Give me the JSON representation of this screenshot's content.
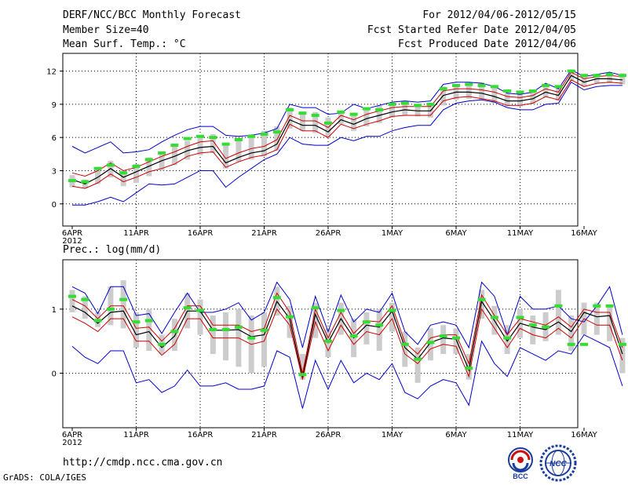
{
  "header": {
    "title": "DERF/NCC/BCC Monthly Forecast",
    "member_size": "Member Size=40",
    "variable": "Mean Surf. Temp.: °C",
    "forecast_period": "For 2012/04/06-2012/05/15",
    "started_refer_date": "Fcst Started Refer Date 2012/04/05",
    "produced_date": "Fcst Produced Date 2012/04/06"
  },
  "panel2_title": "Prec.: log(mm/d)",
  "footer": {
    "url": "http://cmdp.ncc.cma.gov.cn",
    "credit": "GrADS: COLA/IGES"
  },
  "logos": {
    "bcc_text": "BCC",
    "ncc_text": "NCC"
  },
  "colors": {
    "max_min": "#0000cc",
    "std_band": "#cc0000",
    "ensemble_mean": "#000000",
    "climatology": "#33dd33",
    "member_spread": "#cccccc",
    "grid": "#000000"
  },
  "chart_data": [
    {
      "type": "line",
      "title": "Mean Surf. Temp.: °C",
      "x_tick_labels": [
        "6APR",
        "11APR",
        "16APR",
        "21APR",
        "26APR",
        "1MAY",
        "6MAY",
        "11MAY",
        "16MAY"
      ],
      "x_year_label": "2012",
      "y_ticks": [
        0,
        3,
        6,
        9,
        12
      ],
      "ylim": [
        -2,
        13.6
      ],
      "series": [
        {
          "name": "max",
          "color": "#0000cc",
          "values": [
            5.2,
            4.6,
            5.1,
            5.6,
            4.6,
            4.7,
            4.9,
            5.6,
            6.2,
            6.7,
            7.0,
            7.0,
            6.2,
            6.1,
            6.2,
            6.4,
            6.8,
            9.0,
            8.7,
            8.7,
            8.1,
            8.2,
            9.0,
            8.6,
            8.9,
            9.2,
            9.3,
            9.2,
            9.3,
            10.8,
            11.0,
            11.0,
            10.9,
            10.6,
            10.0,
            9.9,
            10.1,
            10.9,
            10.4,
            12.1,
            11.5,
            11.7,
            11.9,
            11.6
          ]
        },
        {
          "name": "std_upper",
          "color": "#cc0000",
          "values": [
            2.8,
            2.5,
            3.0,
            3.7,
            3.0,
            3.3,
            3.8,
            4.3,
            4.7,
            5.2,
            5.6,
            5.7,
            4.1,
            4.6,
            5.0,
            5.2,
            5.8,
            8.0,
            7.5,
            7.5,
            6.9,
            8.0,
            7.6,
            8.1,
            8.4,
            8.7,
            8.8,
            8.8,
            8.8,
            10.2,
            10.4,
            10.4,
            10.3,
            10.1,
            9.7,
            9.6,
            9.8,
            10.4,
            10.1,
            11.9,
            11.3,
            11.5,
            11.6,
            11.5
          ]
        },
        {
          "name": "ensemble_mean",
          "color": "#000000",
          "values": [
            2.2,
            1.8,
            2.4,
            3.2,
            2.4,
            2.9,
            3.4,
            3.9,
            4.3,
            4.8,
            5.1,
            5.2,
            3.7,
            4.2,
            4.6,
            4.8,
            5.4,
            7.6,
            7.1,
            7.1,
            6.5,
            7.6,
            7.2,
            7.7,
            8.0,
            8.3,
            8.5,
            8.4,
            8.4,
            9.8,
            10.1,
            10.1,
            10.0,
            9.7,
            9.3,
            9.3,
            9.5,
            10.1,
            9.8,
            11.6,
            11.0,
            11.3,
            11.3,
            11.2
          ]
        },
        {
          "name": "std_lower",
          "color": "#cc0000",
          "values": [
            1.6,
            1.4,
            1.9,
            2.7,
            2.0,
            2.4,
            2.9,
            3.2,
            3.6,
            4.3,
            4.6,
            4.7,
            3.3,
            3.8,
            4.2,
            4.4,
            4.9,
            7.2,
            6.6,
            6.6,
            6.0,
            7.2,
            6.8,
            7.2,
            7.5,
            7.9,
            8.0,
            8.0,
            8.0,
            9.3,
            9.6,
            9.7,
            9.5,
            9.3,
            8.9,
            8.9,
            9.1,
            9.7,
            9.4,
            11.2,
            10.6,
            10.9,
            11.0,
            10.9
          ]
        },
        {
          "name": "min",
          "color": "#0000cc",
          "values": [
            -0.1,
            -0.1,
            0.2,
            0.6,
            0.2,
            1.0,
            1.8,
            1.7,
            1.8,
            2.4,
            3.0,
            3.0,
            1.5,
            2.4,
            3.2,
            4.0,
            4.5,
            6.0,
            5.4,
            5.3,
            5.3,
            6.0,
            5.7,
            6.1,
            6.1,
            6.6,
            6.9,
            7.1,
            7.1,
            8.5,
            9.1,
            9.3,
            9.4,
            9.2,
            8.7,
            8.5,
            8.5,
            9.0,
            9.1,
            11.0,
            10.3,
            10.6,
            10.7,
            10.7
          ]
        }
      ],
      "climatology_marks": [
        2.1,
        2.0,
        3.2,
        3.5,
        2.8,
        3.4,
        4.0,
        4.6,
        5.3,
        5.9,
        6.1,
        6.0,
        5.4,
        5.8,
        6.1,
        6.3,
        6.5,
        8.5,
        8.2,
        8.0,
        7.3,
        8.3,
        8.1,
        8.6,
        8.5,
        9.0,
        9.1,
        8.9,
        9.0,
        10.4,
        10.7,
        10.8,
        10.7,
        10.6,
        10.2,
        10.1,
        10.2,
        10.7,
        10.6,
        12.0,
        11.6,
        11.6,
        11.7,
        11.6
      ],
      "member_spread": [
        [
          1.5,
          2.6
        ],
        [
          1.4,
          2.2
        ],
        [
          1.8,
          3.2
        ],
        [
          2.4,
          3.9
        ],
        [
          1.6,
          3.0
        ],
        [
          1.9,
          3.6
        ],
        [
          2.5,
          4.2
        ],
        [
          3.0,
          4.6
        ],
        [
          3.5,
          5.2
        ],
        [
          4.0,
          5.7
        ],
        [
          4.4,
          6.1
        ],
        [
          4.6,
          6.3
        ],
        [
          3.2,
          5.4
        ],
        [
          3.8,
          5.8
        ],
        [
          4.0,
          6.3
        ],
        [
          4.3,
          6.6
        ],
        [
          4.8,
          7.0
        ],
        [
          6.8,
          8.7
        ],
        [
          6.6,
          8.2
        ],
        [
          6.4,
          8.3
        ],
        [
          6.0,
          7.8
        ],
        [
          7.2,
          8.3
        ],
        [
          6.6,
          8.0
        ],
        [
          7.0,
          8.6
        ],
        [
          7.3,
          8.9
        ],
        [
          7.8,
          9.1
        ],
        [
          8.0,
          9.2
        ],
        [
          7.9,
          9.0
        ],
        [
          7.8,
          9.1
        ],
        [
          8.9,
          10.6
        ],
        [
          9.4,
          10.7
        ],
        [
          9.5,
          10.8
        ],
        [
          9.4,
          11.0
        ],
        [
          9.1,
          10.6
        ],
        [
          8.8,
          10.0
        ],
        [
          8.8,
          10.0
        ],
        [
          9.0,
          10.1
        ],
        [
          9.6,
          10.8
        ],
        [
          9.3,
          10.5
        ],
        [
          11.1,
          12.0
        ],
        [
          10.6,
          11.5
        ],
        [
          10.9,
          11.6
        ],
        [
          10.9,
          11.9
        ],
        [
          10.8,
          11.8
        ]
      ]
    },
    {
      "type": "line",
      "title": "Prec.: log(mm/d)",
      "x_tick_labels": [
        "6APR",
        "11APR",
        "16APR",
        "21APR",
        "26APR",
        "1MAY",
        "6MAY",
        "11MAY",
        "16MAY"
      ],
      "x_year_label": "2012",
      "y_ticks": [
        0,
        1
      ],
      "ylim": [
        -0.85,
        1.77
      ],
      "series": [
        {
          "name": "max",
          "color": "#0000cc",
          "values": [
            1.35,
            1.25,
            0.93,
            1.35,
            1.35,
            0.9,
            0.93,
            0.62,
            0.95,
            1.25,
            0.95,
            0.95,
            1.0,
            1.1,
            0.83,
            0.95,
            1.42,
            1.15,
            0.4,
            1.2,
            0.65,
            1.22,
            0.8,
            1.0,
            0.95,
            1.25,
            0.65,
            0.45,
            0.75,
            0.8,
            0.75,
            0.4,
            1.42,
            1.2,
            0.6,
            1.2,
            1.0,
            1.0,
            1.05,
            0.85,
            0.8,
            1.05,
            1.35,
            0.6
          ]
        },
        {
          "name": "std_upper",
          "color": "#cc0000",
          "values": [
            1.15,
            1.05,
            0.85,
            1.05,
            1.05,
            0.7,
            0.72,
            0.5,
            0.7,
            1.05,
            1.05,
            0.75,
            0.75,
            0.75,
            0.65,
            0.7,
            1.25,
            0.95,
            0.0,
            1.0,
            0.55,
            0.95,
            0.62,
            0.82,
            0.8,
            1.05,
            0.48,
            0.3,
            0.55,
            0.6,
            0.6,
            0.15,
            1.22,
            0.9,
            0.6,
            0.85,
            0.8,
            0.75,
            0.88,
            0.72,
            1.0,
            0.95,
            0.95,
            0.4
          ]
        },
        {
          "name": "ensemble_mean",
          "color": "#000000",
          "values": [
            1.05,
            0.95,
            0.78,
            0.95,
            0.97,
            0.6,
            0.65,
            0.4,
            0.58,
            0.97,
            0.97,
            0.67,
            0.67,
            0.68,
            0.57,
            0.6,
            1.12,
            0.85,
            -0.07,
            0.92,
            0.48,
            0.85,
            0.55,
            0.75,
            0.72,
            0.97,
            0.4,
            0.22,
            0.48,
            0.55,
            0.53,
            0.05,
            1.12,
            0.82,
            0.5,
            0.78,
            0.72,
            0.68,
            0.8,
            0.65,
            0.95,
            0.88,
            0.9,
            0.3
          ]
        },
        {
          "name": "std_lower",
          "color": "#cc0000",
          "values": [
            0.88,
            0.78,
            0.65,
            0.85,
            0.85,
            0.5,
            0.5,
            0.28,
            0.45,
            0.85,
            0.85,
            0.55,
            0.55,
            0.55,
            0.45,
            0.5,
            1.0,
            0.75,
            -0.1,
            0.8,
            0.35,
            0.75,
            0.45,
            0.65,
            0.6,
            0.85,
            0.3,
            0.15,
            0.38,
            0.45,
            0.42,
            -0.05,
            1.0,
            0.7,
            0.4,
            0.7,
            0.6,
            0.55,
            0.7,
            0.55,
            0.85,
            0.75,
            0.75,
            0.2
          ]
        },
        {
          "name": "min",
          "color": "#0000cc",
          "values": [
            0.42,
            0.25,
            0.15,
            0.35,
            0.35,
            -0.15,
            -0.1,
            -0.3,
            -0.2,
            0.05,
            -0.2,
            -0.2,
            -0.15,
            -0.25,
            -0.25,
            -0.2,
            0.35,
            0.25,
            -0.55,
            0.2,
            -0.25,
            0.2,
            -0.15,
            0.0,
            -0.1,
            0.15,
            -0.3,
            -0.4,
            -0.2,
            -0.1,
            -0.15,
            -0.5,
            0.5,
            0.15,
            -0.05,
            0.4,
            0.3,
            0.2,
            0.35,
            0.3,
            0.6,
            0.5,
            0.4,
            -0.2
          ]
        }
      ],
      "climatology_marks": [
        1.2,
        1.15,
        0.82,
        1.0,
        1.15,
        0.8,
        0.82,
        0.45,
        0.65,
        1.02,
        0.98,
        0.68,
        0.68,
        0.72,
        0.55,
        0.67,
        1.18,
        0.88,
        -0.02,
        1.02,
        0.5,
        0.98,
        0.58,
        0.8,
        0.75,
        0.98,
        0.45,
        0.22,
        0.48,
        0.58,
        0.55,
        0.08,
        1.15,
        0.87,
        0.55,
        0.87,
        0.75,
        0.72,
        1.05,
        0.45,
        0.45,
        1.05,
        1.05,
        0.45
      ],
      "member_spread": [
        [
          0.95,
          1.3
        ],
        [
          0.85,
          1.2
        ],
        [
          0.72,
          0.95
        ],
        [
          0.75,
          1.35
        ],
        [
          0.7,
          1.45
        ],
        [
          0.4,
          0.95
        ],
        [
          0.35,
          1.0
        ],
        [
          0.3,
          0.6
        ],
        [
          0.35,
          0.85
        ],
        [
          0.7,
          1.25
        ],
        [
          0.6,
          1.15
        ],
        [
          0.3,
          0.9
        ],
        [
          0.2,
          0.95
        ],
        [
          0.1,
          1.0
        ],
        [
          0.0,
          0.9
        ],
        [
          0.1,
          0.95
        ],
        [
          0.9,
          1.35
        ],
        [
          0.55,
          1.05
        ],
        [
          -0.1,
          0.3
        ],
        [
          0.55,
          1.1
        ],
        [
          0.25,
          0.7
        ],
        [
          0.6,
          1.1
        ],
        [
          0.25,
          0.85
        ],
        [
          0.45,
          0.95
        ],
        [
          0.35,
          1.0
        ],
        [
          0.65,
          1.1
        ],
        [
          0.1,
          0.65
        ],
        [
          -0.15,
          0.4
        ],
        [
          0.2,
          0.7
        ],
        [
          0.3,
          0.75
        ],
        [
          0.3,
          0.7
        ],
        [
          -0.1,
          0.3
        ],
        [
          0.85,
          1.3
        ],
        [
          0.6,
          1.05
        ],
        [
          0.3,
          0.75
        ],
        [
          0.55,
          1.0
        ],
        [
          0.45,
          0.9
        ],
        [
          0.5,
          0.95
        ],
        [
          0.6,
          1.3
        ],
        [
          0.35,
          0.9
        ],
        [
          0.6,
          1.1
        ],
        [
          0.6,
          1.1
        ],
        [
          0.5,
          1.05
        ],
        [
          0.0,
          0.55
        ]
      ]
    }
  ]
}
